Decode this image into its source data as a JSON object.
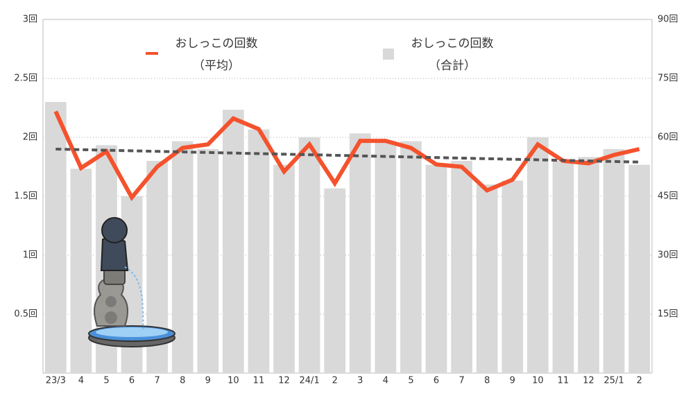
{
  "chart_data": {
    "type": "bar_line",
    "categories": [
      "23/3",
      "4",
      "5",
      "6",
      "7",
      "8",
      "9",
      "10",
      "11",
      "12",
      "24/1",
      "2",
      "3",
      "4",
      "5",
      "6",
      "7",
      "8",
      "9",
      "10",
      "11",
      "12",
      "25/1",
      "2"
    ],
    "series": [
      {
        "name": "おしっこの回数",
        "subname": "（合計）",
        "type": "bar",
        "axis": "y2",
        "color": "#d9d9d9",
        "values": [
          69,
          52,
          58,
          45,
          54,
          59,
          57,
          67,
          62,
          53,
          60,
          47,
          61,
          59,
          59,
          53,
          54,
          48,
          49,
          60,
          54,
          55,
          57,
          53
        ]
      },
      {
        "name": "おしっこの回数",
        "subname": "（平均）",
        "type": "line",
        "axis": "y",
        "color": "#f4522d",
        "values": [
          2.22,
          1.74,
          1.88,
          1.49,
          1.75,
          1.91,
          1.94,
          2.16,
          2.07,
          1.71,
          1.94,
          1.61,
          1.97,
          1.97,
          1.91,
          1.77,
          1.75,
          1.55,
          1.64,
          1.94,
          1.8,
          1.78,
          1.85,
          1.9
        ]
      }
    ],
    "trend": {
      "color": "#555555",
      "values": [
        1.9,
        1.79
      ]
    },
    "ylim": [
      0,
      3
    ],
    "yticks": [
      {
        "value": 0.5,
        "label": "0.5回"
      },
      {
        "value": 1,
        "label": "1回"
      },
      {
        "value": 1.5,
        "label": "1.5回"
      },
      {
        "value": 2,
        "label": "2回"
      },
      {
        "value": 2.5,
        "label": "2.5回"
      },
      {
        "value": 3,
        "label": "3回"
      }
    ],
    "y2lim": [
      0,
      90
    ],
    "y2ticks": [
      {
        "value": 15,
        "label": "15回"
      },
      {
        "value": 30,
        "label": "30回"
      },
      {
        "value": 45,
        "label": "45回"
      },
      {
        "value": 60,
        "label": "60回"
      },
      {
        "value": 75,
        "label": "75回"
      },
      {
        "value": 90,
        "label": "90回"
      }
    ],
    "grid": true
  }
}
